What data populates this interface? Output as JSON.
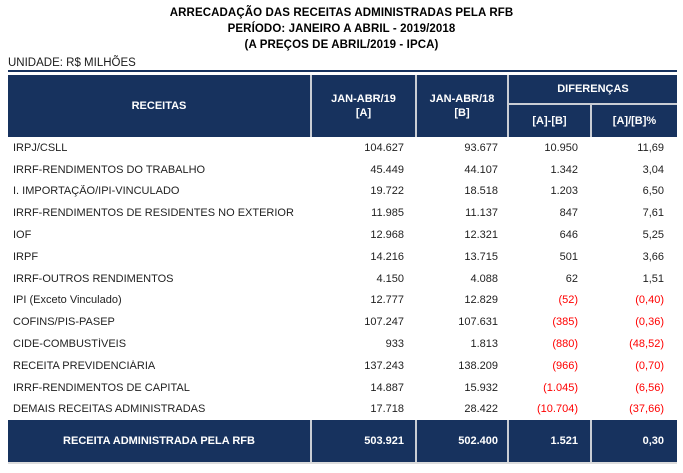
{
  "title": {
    "line1": "ARRECADAÇÃO DAS RECEITAS ADMINISTRADAS PELA RFB",
    "line2": "PERÍODO: JANEIRO A ABRIL - 2019/2018",
    "line3": "(A PREÇOS DE ABRIL/2019 - IPCA)"
  },
  "unit_label": "UNIDADE: R$ MILHÕES",
  "table": {
    "header": {
      "receitas": "RECEITAS",
      "col_a_line1": "JAN-ABR/19",
      "col_a_line2": "[A]",
      "col_b_line1": "JAN-ABR/18",
      "col_b_line2": "[B]",
      "diferencas": "DIFERENÇAS",
      "diff_abs": "[A]-[B]",
      "diff_pct": "[A]/[B]%"
    },
    "rows": [
      {
        "label": "IRPJ/CSLL",
        "a": "104.627",
        "b": "93.677",
        "diff": "10.950",
        "pct": "11,69"
      },
      {
        "label": "IRRF-RENDIMENTOS DO TRABALHO",
        "a": "45.449",
        "b": "44.107",
        "diff": "1.342",
        "pct": "3,04"
      },
      {
        "label": "I. IMPORTAÇÃO/IPI-VINCULADO",
        "a": "19.722",
        "b": "18.518",
        "diff": "1.203",
        "pct": "6,50"
      },
      {
        "label": "IRRF-RENDIMENTOS DE RESIDENTES NO EXTERIOR",
        "a": "11.985",
        "b": "11.137",
        "diff": "847",
        "pct": "7,61"
      },
      {
        "label": "IOF",
        "a": "12.968",
        "b": "12.321",
        "diff": "646",
        "pct": "5,25"
      },
      {
        "label": "IRPF",
        "a": "14.216",
        "b": "13.715",
        "diff": "501",
        "pct": "3,66"
      },
      {
        "label": "IRRF-OUTROS RENDIMENTOS",
        "a": "4.150",
        "b": "4.088",
        "diff": "62",
        "pct": "1,51"
      },
      {
        "label": "IPI (Exceto Vinculado)",
        "a": "12.777",
        "b": "12.829",
        "diff": "(52)",
        "pct": "(0,40)"
      },
      {
        "label": "COFINS/PIS-PASEP",
        "a": "107.247",
        "b": "107.631",
        "diff": "(385)",
        "pct": "(0,36)"
      },
      {
        "label": "CIDE-COMBUSTÍVEIS",
        "a": "933",
        "b": "1.813",
        "diff": "(880)",
        "pct": "(48,52)"
      },
      {
        "label": "RECEITA PREVIDENCIÁRIA",
        "a": "137.243",
        "b": "138.209",
        "diff": "(966)",
        "pct": "(0,70)"
      },
      {
        "label": "IRRF-RENDIMENTOS DE CAPITAL",
        "a": "14.887",
        "b": "15.932",
        "diff": "(1.045)",
        "pct": "(6,56)"
      },
      {
        "label": "DEMAIS RECEITAS ADMINISTRADAS",
        "a": "17.718",
        "b": "28.422",
        "diff": "(10.704)",
        "pct": "(37,66)"
      }
    ],
    "total": {
      "label": "RECEITA ADMINISTRADA PELA RFB",
      "a": "503.921",
      "b": "502.400",
      "diff": "1.521",
      "pct": "0,30"
    }
  },
  "colors": {
    "header_bg": "#17325E",
    "negative_value": "#FF0000",
    "body_text": "#1F1F1F",
    "header_text": "#FFFFFF",
    "divider": "#C9CDD4"
  }
}
